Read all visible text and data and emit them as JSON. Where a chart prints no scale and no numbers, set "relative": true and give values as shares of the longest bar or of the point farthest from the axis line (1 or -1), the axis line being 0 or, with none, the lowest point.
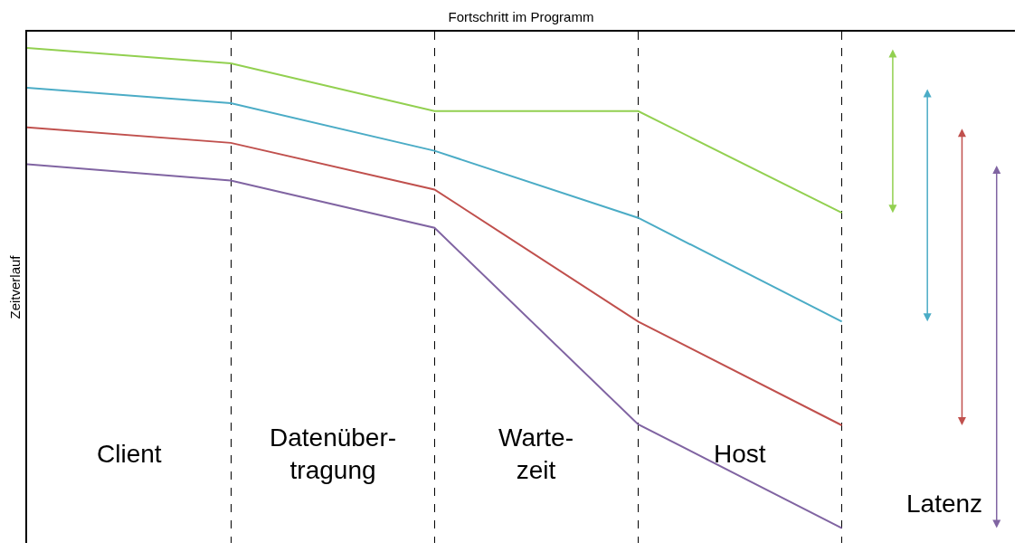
{
  "chart_data": {
    "type": "line",
    "relative": true,
    "xlabel": "Fortschritt im Programm",
    "ylabel": "Zeitverlauf",
    "categories": [
      null,
      null,
      null,
      null,
      null
    ],
    "grid": "x",
    "marker": "none",
    "line_style": "solid",
    "series": [
      {
        "color": "#92d050",
        "values": [
          -0.033,
          -0.064,
          -0.16,
          -0.16,
          -0.365
        ]
      },
      {
        "color": "#4bacc6",
        "values": [
          -0.113,
          -0.144,
          -0.24,
          -0.375,
          -0.584
        ]
      },
      {
        "color": "#c0504d",
        "values": [
          -0.193,
          -0.224,
          -0.318,
          -0.584,
          -0.793
        ]
      },
      {
        "color": "#8064a2",
        "values": [
          -0.267,
          -0.3,
          -0.395,
          -0.791,
          -1
        ]
      }
    ],
    "annotations": [
      "Client",
      "Datenüber-\ntragung",
      "Warte-\nzeit",
      "Host",
      "Latenz"
    ]
  }
}
